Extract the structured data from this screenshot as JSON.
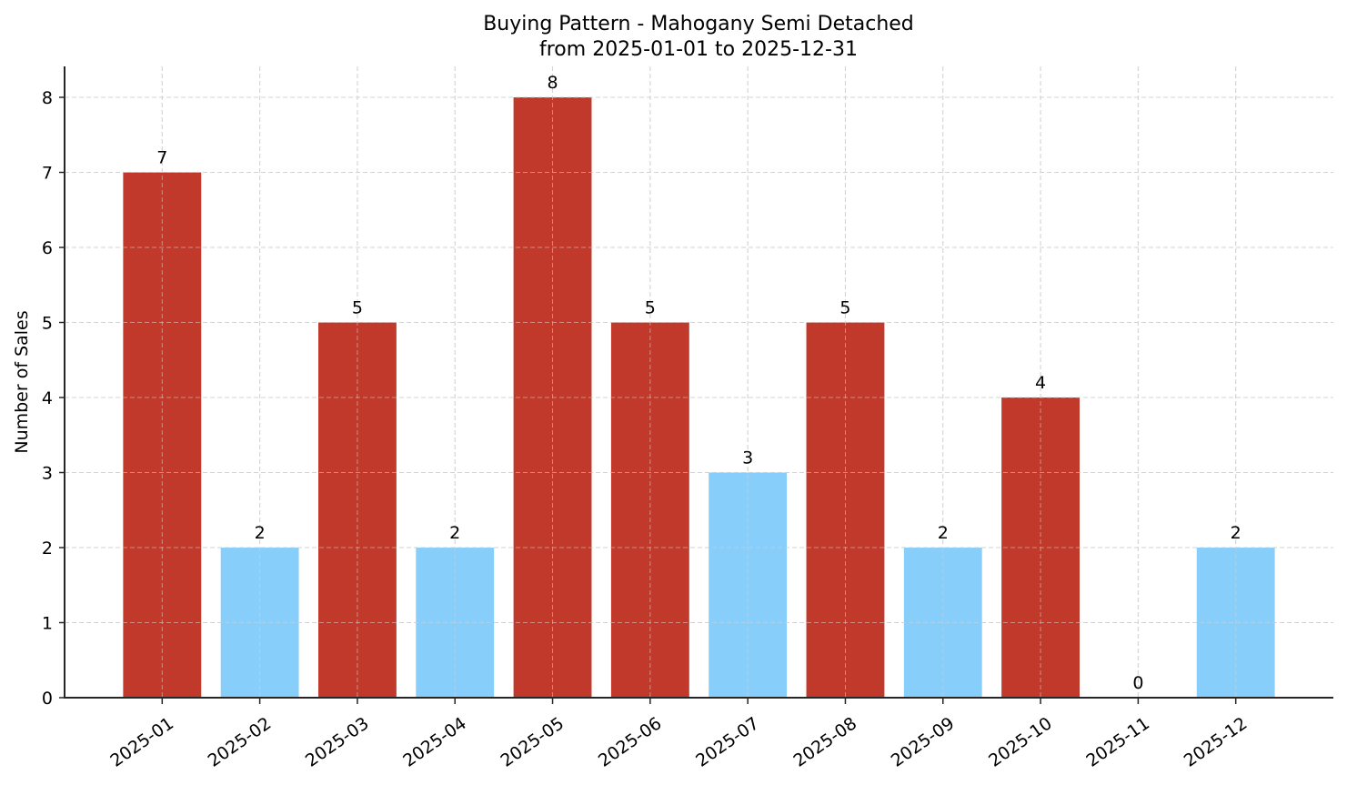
{
  "chart_data": {
    "type": "bar",
    "title": "Buying Pattern - Mahogany Semi Detached",
    "subtitle": "from 2025-01-01 to 2025-12-31",
    "xlabel": "",
    "ylabel": "Number of Sales",
    "categories": [
      "2025-01",
      "2025-02",
      "2025-03",
      "2025-04",
      "2025-05",
      "2025-06",
      "2025-07",
      "2025-08",
      "2025-09",
      "2025-10",
      "2025-11",
      "2025-12"
    ],
    "values": [
      7,
      2,
      5,
      2,
      8,
      5,
      3,
      5,
      2,
      4,
      0,
      2
    ],
    "bar_colors": [
      "#c0392b",
      "#87cefa",
      "#c0392b",
      "#87cefa",
      "#c0392b",
      "#c0392b",
      "#87cefa",
      "#c0392b",
      "#87cefa",
      "#c0392b",
      "#87cefa",
      "#87cefa"
    ],
    "data_labels": [
      "7",
      "2",
      "5",
      "2",
      "8",
      "5",
      "3",
      "5",
      "2",
      "4",
      "0",
      "2"
    ],
    "yticks": [
      0,
      1,
      2,
      3,
      4,
      5,
      6,
      7,
      8
    ],
    "ylim": [
      0,
      8.4
    ],
    "grid": true,
    "grid_style": "dashed",
    "legend": null,
    "colors": {
      "high": "#c0392b",
      "low": "#87cefa",
      "axis": "#262626",
      "grid": "#d3d3d3"
    }
  }
}
